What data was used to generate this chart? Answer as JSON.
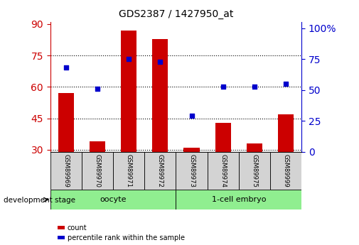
{
  "title": "GDS2387 / 1427950_at",
  "samples": [
    "GSM89969",
    "GSM89970",
    "GSM89971",
    "GSM89972",
    "GSM89973",
    "GSM89974",
    "GSM89975",
    "GSM89999"
  ],
  "count_values": [
    57,
    34,
    87,
    83,
    31,
    43,
    33,
    47
  ],
  "percentile_values": [
    68,
    51,
    75,
    73,
    29,
    53,
    53,
    55
  ],
  "left_ylim": [
    29,
    91
  ],
  "left_yticks": [
    30,
    45,
    60,
    75,
    90
  ],
  "right_ylim": [
    0,
    105
  ],
  "right_yticks": [
    0,
    25,
    50,
    75,
    100
  ],
  "right_yticklabels": [
    "0",
    "25",
    "50",
    "75",
    "100%"
  ],
  "bar_color": "#cc0000",
  "dot_color": "#0000cc",
  "bar_width": 0.5,
  "left_tick_color": "#cc0000",
  "right_tick_color": "#0000cc",
  "legend_count_label": "count",
  "legend_pct_label": "percentile rank within the sample",
  "dev_stage_label": "development stage",
  "group_oocyte_label": "oocyte",
  "group_embryo_label": "1-cell embryo"
}
